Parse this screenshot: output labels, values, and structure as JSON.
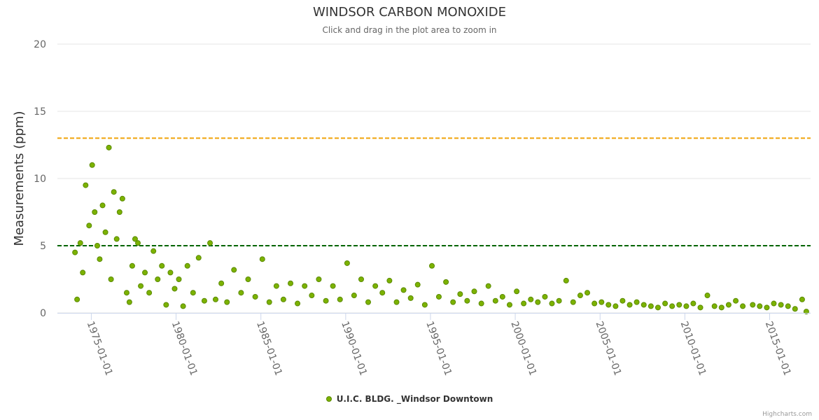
{
  "chart_data": {
    "type": "scatter",
    "title": "WINDSOR CARBON MONOXIDE",
    "subtitle": "Click and drag in the plot area to zoom in",
    "ylabel": "Measurements (ppm)",
    "xlabel": "",
    "ylim": [
      0,
      20
    ],
    "y_ticks": [
      "0",
      "5",
      "10",
      "15",
      "20"
    ],
    "x_range": [
      "1973-01-01",
      "2017-06-01"
    ],
    "x_ticks": [
      "1975-01-01",
      "1980-01-01",
      "1985-01-01",
      "1990-01-01",
      "1995-01-01",
      "2000-01-01",
      "2005-01-01",
      "2010-01-01",
      "2015-01-01"
    ],
    "grid": true,
    "reference_lines": [
      {
        "value": 13,
        "color": "#f0a30a",
        "style": "dashed"
      },
      {
        "value": 5,
        "color": "#006400",
        "style": "dashed"
      }
    ],
    "series": [
      {
        "name": "U.I.C. BLDG. _Windsor Downtown",
        "color": "#7cb200",
        "border_color": "#5a8a00",
        "note_points": "approximate dense hourly-average measurements",
        "x": [
          "1974-01-15",
          "1974-03-01",
          "1974-05-10",
          "1974-07-01",
          "1974-09-01",
          "1974-11-15",
          "1975-01-20",
          "1975-03-15",
          "1975-05-10",
          "1975-07-01",
          "1975-09-01",
          "1975-11-01",
          "1976-01-15",
          "1976-03-01",
          "1976-05-01",
          "1976-07-01",
          "1976-09-01",
          "1976-11-01",
          "1977-02-01",
          "1977-04-01",
          "1977-06-01",
          "1977-08-01",
          "1977-10-01",
          "1977-12-01",
          "1978-03-01",
          "1978-06-01",
          "1978-09-01",
          "1978-12-01",
          "1979-03-01",
          "1979-06-01",
          "1979-09-01",
          "1979-12-01",
          "1980-03-01",
          "1980-06-01",
          "1980-09-01",
          "1981-01-01",
          "1981-05-01",
          "1981-09-01",
          "1982-01-01",
          "1982-05-01",
          "1982-09-01",
          "1983-01-01",
          "1983-06-01",
          "1983-11-01",
          "1984-04-01",
          "1984-09-01",
          "1985-02-01",
          "1985-07-01",
          "1985-12-01",
          "1986-05-01",
          "1986-10-01",
          "1987-03-01",
          "1987-08-01",
          "1988-01-01",
          "1988-06-01",
          "1988-11-01",
          "1989-04-01",
          "1989-09-01",
          "1990-02-01",
          "1990-07-01",
          "1990-12-01",
          "1991-05-01",
          "1991-10-01",
          "1992-03-01",
          "1992-08-01",
          "1993-01-01",
          "1993-06-01",
          "1993-11-01",
          "1994-04-01",
          "1994-09-01",
          "1995-02-01",
          "1995-07-01",
          "1995-12-01",
          "1996-05-01",
          "1996-10-01",
          "1997-03-01",
          "1997-08-01",
          "1998-01-01",
          "1998-06-01",
          "1998-11-01",
          "1999-04-01",
          "1999-09-01",
          "2000-02-01",
          "2000-07-01",
          "2000-12-01",
          "2001-05-01",
          "2001-10-01",
          "2002-03-01",
          "2002-08-01",
          "2003-01-01",
          "2003-06-01",
          "2003-11-01",
          "2004-04-01",
          "2004-09-01",
          "2005-02-01",
          "2005-07-01",
          "2005-12-01",
          "2006-05-01",
          "2006-10-01",
          "2007-03-01",
          "2007-08-01",
          "2008-01-01",
          "2008-06-01",
          "2008-11-01",
          "2009-04-01",
          "2009-09-01",
          "2010-02-01",
          "2010-07-01",
          "2010-12-01",
          "2011-05-01",
          "2011-10-01",
          "2012-03-01",
          "2012-08-01",
          "2013-01-01",
          "2013-06-01",
          "2014-01-01",
          "2014-06-01",
          "2014-11-01",
          "2015-04-01",
          "2015-09-01",
          "2016-02-01",
          "2016-07-01",
          "2016-12-01",
          "2017-03-01"
        ],
        "y": [
          4.5,
          1.0,
          5.2,
          3.0,
          9.5,
          6.5,
          11.0,
          7.5,
          5.0,
          4.0,
          8.0,
          6.0,
          12.3,
          2.5,
          9.0,
          5.5,
          7.5,
          8.5,
          1.5,
          0.8,
          3.5,
          5.5,
          5.2,
          2.0,
          3.0,
          1.5,
          4.6,
          2.5,
          3.5,
          0.6,
          3.0,
          1.8,
          2.5,
          0.5,
          3.5,
          1.5,
          4.1,
          0.9,
          5.2,
          1.0,
          2.2,
          0.8,
          3.2,
          1.5,
          2.5,
          1.2,
          4.0,
          0.8,
          2.0,
          1.0,
          2.2,
          0.7,
          2.0,
          1.3,
          2.5,
          0.9,
          2.0,
          1.0,
          3.7,
          1.3,
          2.5,
          0.8,
          2.0,
          1.5,
          2.4,
          0.8,
          1.7,
          1.1,
          2.1,
          0.6,
          3.5,
          1.2,
          2.3,
          0.8,
          1.4,
          0.9,
          1.6,
          0.7,
          2.0,
          0.9,
          1.2,
          0.6,
          1.6,
          0.7,
          1.0,
          0.8,
          1.2,
          0.7,
          0.9,
          2.4,
          0.8,
          1.3,
          1.5,
          0.7,
          0.8,
          0.6,
          0.5,
          0.9,
          0.6,
          0.8,
          0.6,
          0.5,
          0.4,
          0.7,
          0.5,
          0.6,
          0.5,
          0.7,
          0.4,
          1.3,
          0.5,
          0.4,
          0.6,
          0.9,
          0.5,
          0.6,
          0.5,
          0.4,
          0.7,
          0.6,
          0.5,
          0.3,
          1.0,
          0.1
        ]
      }
    ]
  },
  "credits": "Highcharts.com"
}
